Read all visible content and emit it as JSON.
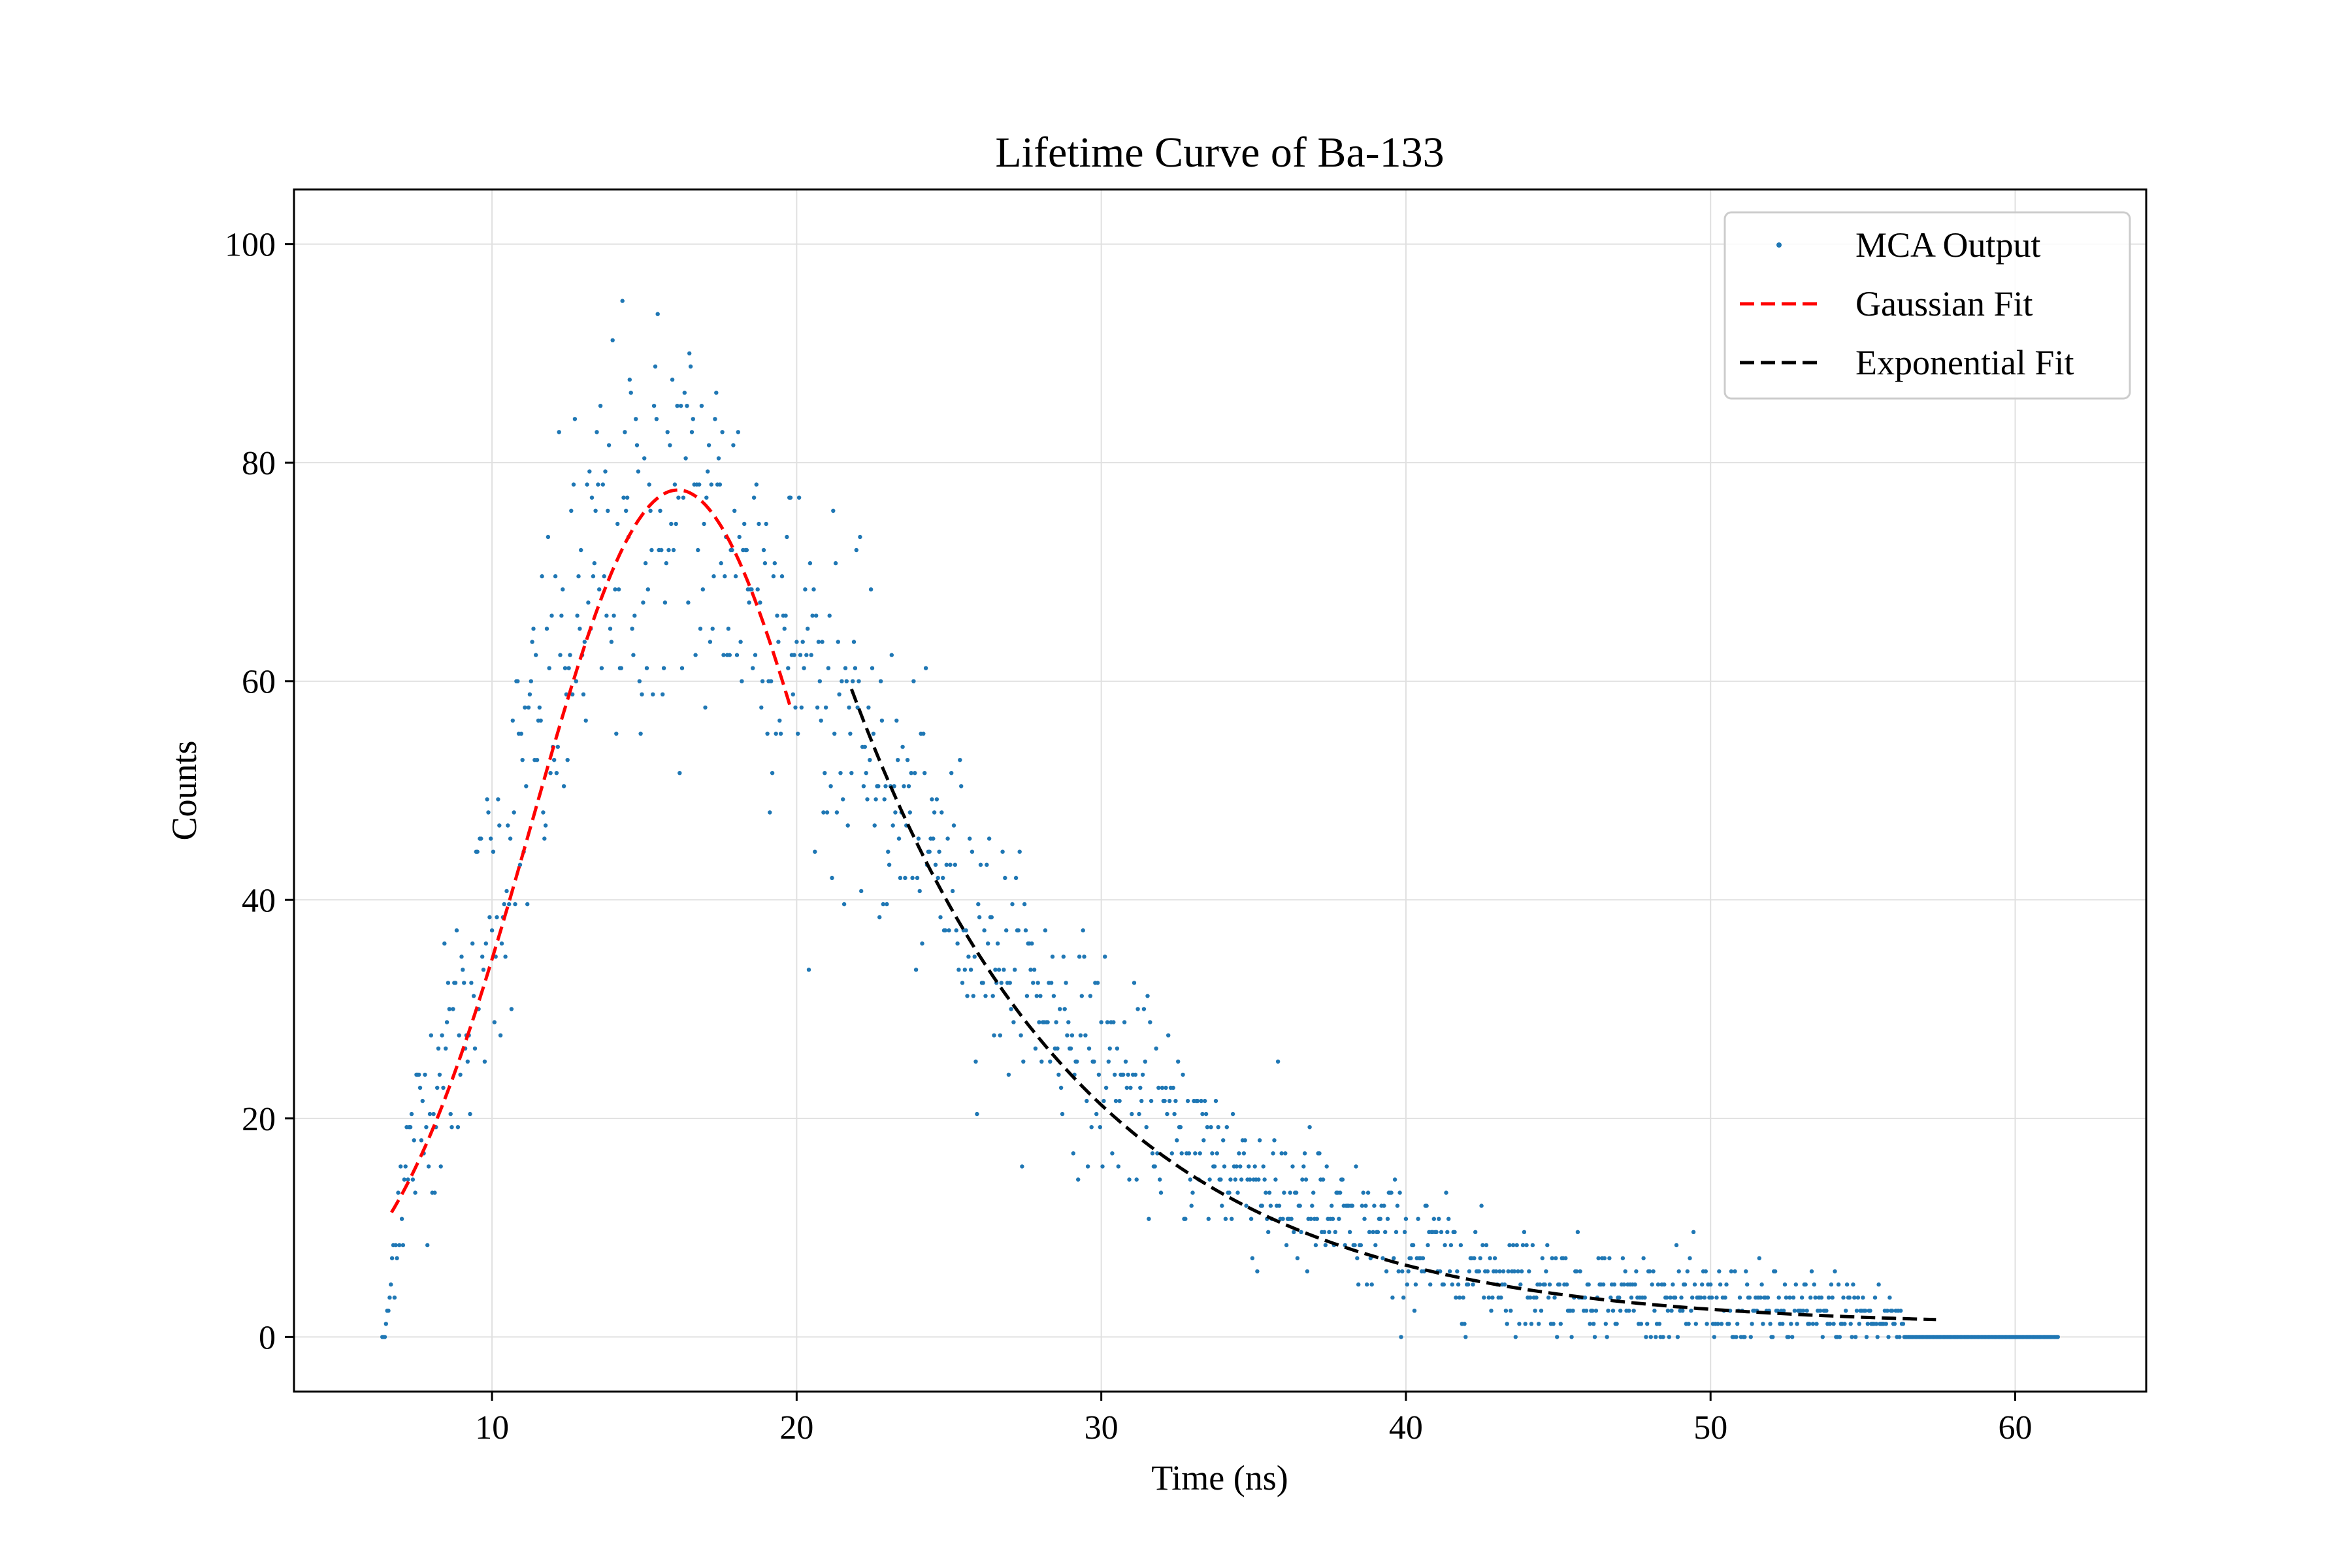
{
  "chart_data": {
    "type": "scatter",
    "title": "Lifetime Curve of Ba-133",
    "xlabel": "Time (ns)",
    "ylabel": "Counts",
    "xlim": [
      3.5,
      64.3
    ],
    "ylim": [
      -5,
      105
    ],
    "xticks": [
      10,
      20,
      30,
      40,
      50,
      60
    ],
    "yticks": [
      0,
      20,
      40,
      60,
      80,
      100
    ],
    "xtick_labels": [
      "10",
      "20",
      "30",
      "40",
      "50",
      "60"
    ],
    "ytick_labels": [
      "0",
      "20",
      "40",
      "60",
      "80",
      "100"
    ],
    "grid": true,
    "legend_position": "top-right",
    "colors": {
      "scatter": "#1f77b4",
      "gaussian": "#ff0000",
      "exponential": "#000000",
      "grid": "#e0e0e0"
    },
    "series": [
      {
        "name": "MCA Output",
        "kind": "scatter",
        "x_range": [
          6.4,
          61.4
        ],
        "x_step": 0.04,
        "count_quantum": 1.2,
        "x": [
          6.5,
          7,
          8,
          9,
          10,
          11,
          12,
          13,
          14,
          15,
          16,
          17,
          18,
          19,
          20,
          21,
          22,
          23,
          24,
          25,
          26,
          27,
          28,
          29,
          30,
          32,
          34,
          36,
          38,
          40,
          42,
          44,
          46,
          48,
          50,
          52,
          54,
          56,
          56.5,
          58,
          60,
          61.4
        ],
        "y": [
          0,
          14,
          22,
          30,
          39,
          50,
          59,
          67,
          72,
          74,
          75,
          74,
          72,
          68,
          63,
          59,
          55,
          50,
          46,
          42,
          38,
          34,
          31,
          28,
          25,
          20,
          16,
          13,
          10,
          8,
          6.5,
          5.2,
          4.2,
          3.4,
          2.8,
          2.3,
          2.0,
          1.8,
          0,
          0,
          0,
          0
        ],
        "spread": [
          0,
          4,
          5,
          6,
          7,
          8,
          9,
          9,
          10,
          10,
          10,
          10,
          9,
          9,
          8,
          8,
          7,
          7,
          6,
          6,
          6,
          5,
          5,
          5,
          5,
          4,
          4,
          3.5,
          3,
          3,
          2.5,
          2.5,
          2,
          2,
          2,
          2,
          2,
          2,
          0,
          0,
          0,
          0
        ]
      },
      {
        "name": "Gaussian Fit",
        "kind": "fit",
        "x_range": [
          6.7,
          19.8
        ],
        "amplitude": 77.5,
        "center": 16.1,
        "sigma": 4.8
      },
      {
        "name": "Exponential Fit",
        "kind": "fit",
        "x_range": [
          21.8,
          57.5
        ],
        "amplitude": 56.8,
        "decay_constant": 7.75,
        "x0": 22,
        "offset": 1.0
      }
    ]
  }
}
